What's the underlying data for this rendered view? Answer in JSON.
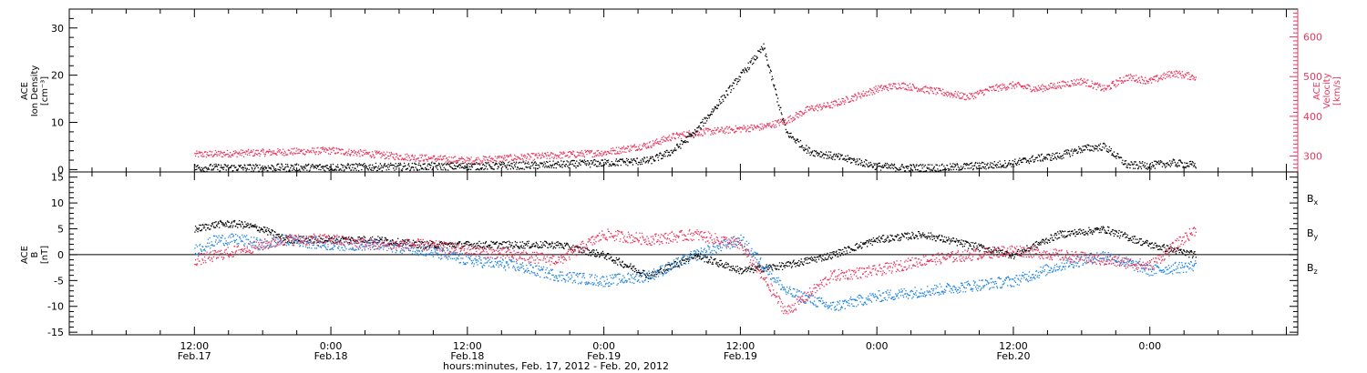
{
  "chart_data": [
    {
      "type": "scatter",
      "panel": "top",
      "ylabel_left": [
        "ACE",
        "Ion Density",
        "[cm⁻³]"
      ],
      "ylabel_right": [
        "ACE",
        "Velocity",
        "[km/s]"
      ],
      "left_ticks": [
        "0",
        "10",
        "20",
        "30"
      ],
      "right_ticks": [
        "300",
        "400",
        "500",
        "600"
      ],
      "ylim_left": [
        -0.5,
        34
      ],
      "ylim_right": [
        260,
        670
      ],
      "grid": false,
      "series": [
        {
          "axis": "left",
          "color": "#000000",
          "x_hours": [
            0,
            6,
            12,
            18,
            24,
            30,
            36,
            40,
            42,
            44,
            46,
            48,
            50,
            52,
            54,
            56,
            58,
            60,
            62,
            64,
            66,
            68,
            70,
            72,
            74,
            76,
            78,
            80,
            82,
            84,
            86,
            88
          ],
          "values": [
            0.5,
            0.5,
            0.6,
            0.7,
            0.8,
            1,
            1.5,
            2,
            4,
            8,
            14,
            20,
            26,
            8,
            4,
            3,
            2,
            0.8,
            0.5,
            0.5,
            0.5,
            0.8,
            1,
            1.5,
            2.5,
            3,
            4.5,
            5,
            1,
            1,
            1.5,
            1
          ]
        },
        {
          "axis": "right",
          "color": "#e8375f",
          "x_hours": [
            0,
            6,
            12,
            18,
            24,
            30,
            36,
            40,
            42,
            44,
            46,
            48,
            50,
            52,
            54,
            56,
            58,
            60,
            62,
            64,
            66,
            68,
            70,
            72,
            74,
            76,
            78,
            80,
            82,
            84,
            86,
            88
          ],
          "values": [
            305,
            310,
            315,
            300,
            290,
            300,
            310,
            330,
            350,
            360,
            365,
            370,
            375,
            390,
            420,
            430,
            450,
            470,
            480,
            470,
            460,
            450,
            470,
            480,
            470,
            480,
            490,
            470,
            500,
            490,
            510,
            500
          ]
        }
      ]
    },
    {
      "type": "scatter",
      "panel": "bottom",
      "ylabel_left": [
        "ACE",
        "B",
        "[nT]"
      ],
      "left_ticks": [
        "-15",
        "-10",
        "-5",
        "0",
        "5",
        "10",
        "15"
      ],
      "ylim": [
        -15.5,
        16
      ],
      "zero_line": true,
      "grid": false,
      "series": [
        {
          "name": "Bx",
          "name_main": "B",
          "name_sub": "x",
          "color": "#000000",
          "x_hours": [
            0,
            2,
            4,
            6,
            8,
            12,
            16,
            20,
            24,
            28,
            32,
            36,
            40,
            44,
            48,
            52,
            56,
            60,
            64,
            68,
            72,
            76,
            80,
            84,
            88
          ],
          "values": [
            5,
            6,
            6,
            5,
            3,
            3,
            3,
            2,
            2,
            2,
            2,
            0,
            -4,
            0,
            -3,
            -2,
            0,
            3,
            4,
            2,
            0,
            4,
            5,
            2,
            0
          ]
        },
        {
          "name": "By",
          "name_main": "B",
          "name_sub": "y",
          "color": "#1e84e0",
          "x_hours": [
            0,
            2,
            4,
            6,
            8,
            12,
            16,
            20,
            24,
            28,
            32,
            36,
            40,
            44,
            48,
            52,
            56,
            60,
            64,
            68,
            72,
            76,
            80,
            84,
            88
          ],
          "values": [
            1,
            3,
            3,
            2,
            3,
            2,
            2,
            1,
            -1,
            -2,
            -4,
            -5,
            -4,
            0,
            3,
            -7,
            -10,
            -8,
            -7,
            -6,
            -5,
            -2,
            0,
            -3,
            -2
          ]
        },
        {
          "name": "Bz",
          "name_main": "B",
          "name_sub": "z",
          "color": "#e8375f",
          "x_hours": [
            0,
            2,
            4,
            6,
            8,
            12,
            16,
            20,
            24,
            28,
            32,
            36,
            40,
            44,
            48,
            52,
            56,
            60,
            64,
            68,
            72,
            76,
            80,
            84,
            88
          ],
          "values": [
            -1,
            0,
            1,
            2,
            3,
            3,
            2,
            2,
            1,
            0,
            -1,
            4,
            3,
            4,
            2,
            -11,
            -4,
            -3,
            -1,
            0,
            1,
            0,
            -1,
            -2,
            5
          ]
        }
      ]
    }
  ],
  "x_axis": {
    "xlim_hours": [
      -11,
      97
    ],
    "major_hours": [
      0,
      12,
      24,
      36,
      48,
      60,
      72,
      84
    ],
    "time_labels": [
      "12:00",
      "0:00",
      "12:00",
      "0:00",
      "12:00",
      "0:00",
      "12:00",
      "0:00"
    ],
    "date_labels": [
      "Feb.17",
      "Feb.18",
      "Feb.18",
      "Feb.19",
      "Feb.19",
      "Feb.20"
    ],
    "date_hours": [
      0,
      12,
      24,
      36,
      48,
      72
    ],
    "title": "hours:minutes, Feb. 17, 2012 - Feb. 20, 2012"
  }
}
